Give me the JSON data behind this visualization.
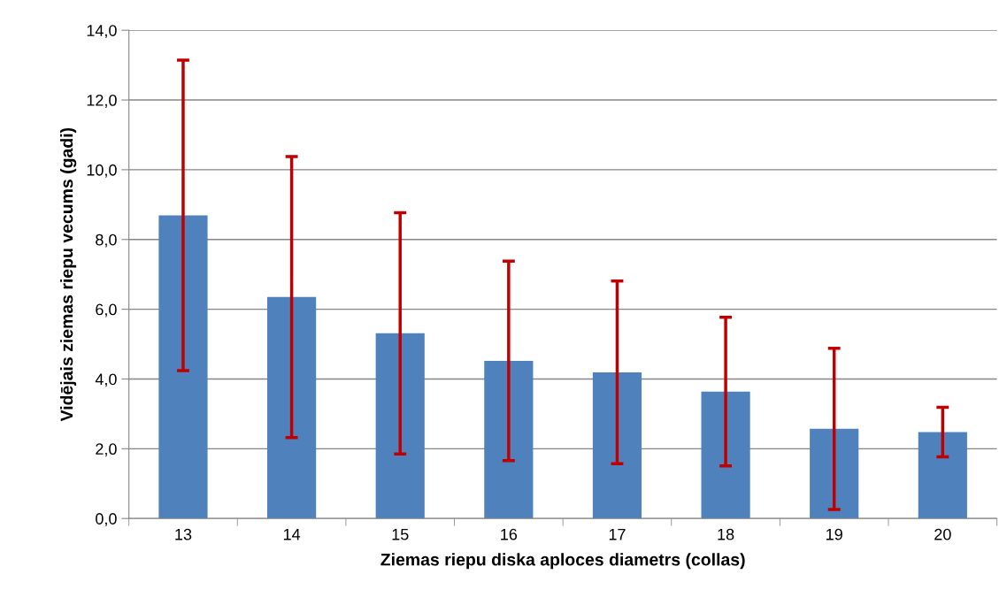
{
  "chart_data": {
    "type": "bar",
    "xlabel": "Ziemas riepu diska aploces diametrs (collas)",
    "ylabel": "Vidējais ziemas riepu vecums (gadi)",
    "categories": [
      "13",
      "14",
      "15",
      "16",
      "17",
      "18",
      "19",
      "20"
    ],
    "series": [
      {
        "color": "#4f81bd",
        "values": [
          8.69,
          6.35,
          5.31,
          4.52,
          4.19,
          3.64,
          2.57,
          2.48
        ],
        "errors": [
          4.45,
          4.03,
          3.46,
          2.86,
          2.62,
          2.13,
          2.31,
          0.71
        ]
      }
    ],
    "ylim": [
      0,
      14
    ],
    "yticks": [
      {
        "value": 0,
        "label": "0,0"
      },
      {
        "value": 2,
        "label": "2,0"
      },
      {
        "value": 4,
        "label": "4,0"
      },
      {
        "value": 6,
        "label": "6,0"
      },
      {
        "value": 8,
        "label": "8,0"
      },
      {
        "value": 10,
        "label": "10,0"
      },
      {
        "value": 12,
        "label": "12,0"
      },
      {
        "value": 14,
        "label": "14,0"
      }
    ],
    "grid": "y",
    "legend": false
  }
}
